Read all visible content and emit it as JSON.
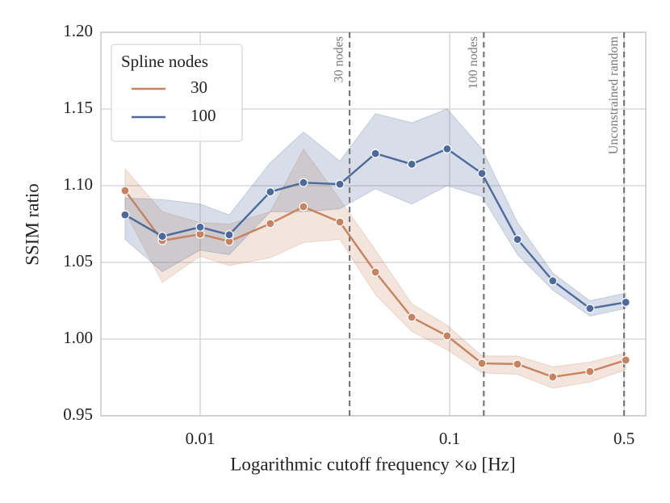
{
  "chart_data": {
    "type": "line",
    "xlabel": "Logarithmic cutoff frequency ×ω [Hz]",
    "ylabel": "SSIM ratio",
    "xscale": "log",
    "grid": true,
    "legend": {
      "title": "Spline nodes",
      "loc": "upper left"
    },
    "x": [
      0.005,
      0.00705,
      0.01,
      0.01307,
      0.0191,
      0.02594,
      0.0363,
      0.0504,
      0.0705,
      0.0977,
      0.1347,
      0.187,
      0.259,
      0.365,
      0.508
    ],
    "series": [
      {
        "name": "30",
        "color": "#c8825f",
        "values": [
          1.0968,
          1.0642,
          1.0684,
          1.0637,
          1.0753,
          1.0863,
          1.0763,
          1.0437,
          1.0142,
          1.0021,
          0.9842,
          0.9837,
          0.9753,
          0.9789,
          0.9863
        ],
        "upper": [
          1.111,
          1.083,
          1.076,
          1.075,
          1.083,
          1.124,
          1.091,
          1.058,
          1.023,
          1.009,
          0.989,
          0.989,
          0.982,
          0.985,
          0.991
        ],
        "lower": [
          1.083,
          1.037,
          1.054,
          1.048,
          1.053,
          1.063,
          1.065,
          1.029,
          1.005,
          0.993,
          0.978,
          0.977,
          0.968,
          0.972,
          0.98
        ]
      },
      {
        "name": "100",
        "color": "#4c6a9c",
        "values": [
          1.081,
          1.067,
          1.073,
          1.068,
          1.096,
          1.102,
          1.101,
          1.121,
          1.114,
          1.124,
          1.108,
          1.065,
          1.038,
          1.02,
          1.024
        ],
        "upper": [
          1.092,
          1.091,
          1.088,
          1.081,
          1.115,
          1.135,
          1.116,
          1.147,
          1.141,
          1.15,
          1.124,
          1.076,
          1.043,
          1.025,
          1.03
        ],
        "lower": [
          1.065,
          1.044,
          1.058,
          1.055,
          1.083,
          1.083,
          1.085,
          1.098,
          1.088,
          1.1,
          1.093,
          1.055,
          1.032,
          1.015,
          1.02
        ]
      }
    ],
    "vlines": [
      {
        "x": 0.0397,
        "label": "30 nodes"
      },
      {
        "x": 0.137,
        "label": "100 nodes"
      },
      {
        "x": 0.5,
        "label": "Unconstrained random"
      }
    ],
    "xlim": [
      0.004,
      0.611
    ],
    "xticks": [
      0.01,
      0.1,
      0.5
    ],
    "ylim": [
      0.95,
      1.2
    ],
    "yticks": [
      0.95,
      {
        "value": 1.0,
        "label": "1.00"
      },
      1.05,
      {
        "value": 1.1,
        "label": "1.10"
      },
      1.15,
      {
        "value": 1.2,
        "label": "1.20"
      }
    ]
  }
}
